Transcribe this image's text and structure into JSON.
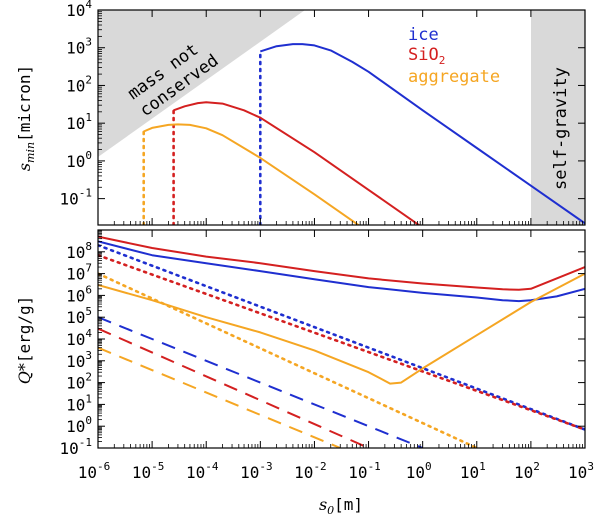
{
  "chart_data": [
    {
      "type": "line",
      "panel": "top",
      "ylabel_symbol": "s",
      "ylabel_sub": "min",
      "ylabel_unit": "[micron]",
      "xscale": "log",
      "yscale": "log",
      "xlim": [
        1e-06,
        1000
      ],
      "ylim": [
        0.02,
        10000
      ],
      "y_ticks": [
        {
          "base": "10",
          "exp": "-1",
          "value": 0.1
        },
        {
          "base": "10",
          "exp": "0",
          "value": 1
        },
        {
          "base": "10",
          "exp": "1",
          "value": 10
        },
        {
          "base": "10",
          "exp": "2",
          "value": 100
        },
        {
          "base": "10",
          "exp": "3",
          "value": 1000
        },
        {
          "base": "10",
          "exp": "4",
          "value": 10000
        }
      ],
      "legend": [
        {
          "name": "ice",
          "color": "#1f2fd0"
        },
        {
          "name": "SiO",
          "sub": "2",
          "color": "#d42020"
        },
        {
          "name": "aggregate",
          "color": "#f5a623"
        }
      ],
      "regions": [
        {
          "label_line1": "mass not",
          "label_line2": "conserved",
          "fill": "#d9d9d9"
        },
        {
          "label": "self-gravity",
          "fill": "#d9d9d9",
          "x_from": 100,
          "x_to": 1000
        }
      ],
      "series": [
        {
          "name": "ice",
          "color": "#1f2fd0",
          "style": "solid",
          "x": [
            0.001,
            0.002,
            0.004,
            0.006,
            0.01,
            0.02,
            0.05,
            0.1,
            1,
            10,
            100,
            1000
          ],
          "y": [
            800,
            1100,
            1250,
            1250,
            1150,
            850,
            420,
            230,
            22,
            2.2,
            0.22,
            0.022
          ]
        },
        {
          "name": "ice-cutoff",
          "color": "#1f2fd0",
          "style": "dotted",
          "x": [
            0.001,
            0.001
          ],
          "y": [
            0.02,
            800
          ]
        },
        {
          "name": "SiO2",
          "color": "#d42020",
          "style": "solid",
          "x": [
            2.5e-05,
            4e-05,
            7e-05,
            0.0001,
            0.0002,
            0.0005,
            0.001,
            0.01,
            0.1,
            1
          ],
          "y": [
            22,
            28,
            34,
            36,
            33,
            22,
            14,
            1.7,
            0.17,
            0.017
          ]
        },
        {
          "name": "SiO2-cutoff",
          "color": "#d42020",
          "style": "dotted",
          "x": [
            2.5e-05,
            2.5e-05
          ],
          "y": [
            0.02,
            22
          ]
        },
        {
          "name": "aggregate",
          "color": "#f5a623",
          "style": "solid",
          "x": [
            7e-06,
            1e-05,
            2e-05,
            3e-05,
            5e-05,
            0.0001,
            0.0002,
            0.001,
            0.01,
            0.1
          ],
          "y": [
            6,
            7.5,
            9,
            9.3,
            9,
            7.3,
            4.8,
            1.2,
            0.13,
            0.013
          ]
        },
        {
          "name": "aggregate-cutoff",
          "color": "#f5a623",
          "style": "dotted",
          "x": [
            7e-06,
            7e-06
          ],
          "y": [
            0.02,
            6
          ]
        }
      ]
    },
    {
      "type": "line",
      "panel": "bottom",
      "ylabel_symbol": "Q*",
      "ylabel_unit": "[erg/g]",
      "xlabel_symbol": "s",
      "xlabel_sub": "0",
      "xlabel_unit": "[m]",
      "xscale": "log",
      "yscale": "log",
      "xlim": [
        1e-06,
        1000
      ],
      "ylim": [
        0.1,
        1000000000
      ],
      "x_ticks": [
        {
          "base": "10",
          "exp": "-6",
          "value": 1e-06
        },
        {
          "base": "10",
          "exp": "-5",
          "value": 1e-05
        },
        {
          "base": "10",
          "exp": "-4",
          "value": 0.0001
        },
        {
          "base": "10",
          "exp": "-3",
          "value": 0.001
        },
        {
          "base": "10",
          "exp": "-2",
          "value": 0.01
        },
        {
          "base": "10",
          "exp": "-1",
          "value": 0.1
        },
        {
          "base": "10",
          "exp": "0",
          "value": 1
        },
        {
          "base": "10",
          "exp": "1",
          "value": 10
        },
        {
          "base": "10",
          "exp": "2",
          "value": 100
        },
        {
          "base": "10",
          "exp": "3",
          "value": 1000
        }
      ],
      "y_ticks": [
        {
          "base": "10",
          "exp": "-1",
          "value": 0.1
        },
        {
          "base": "10",
          "exp": "0",
          "value": 1
        },
        {
          "base": "10",
          "exp": "1",
          "value": 10
        },
        {
          "base": "10",
          "exp": "2",
          "value": 100
        },
        {
          "base": "10",
          "exp": "3",
          "value": 1000
        },
        {
          "base": "10",
          "exp": "4",
          "value": 10000
        },
        {
          "base": "10",
          "exp": "5",
          "value": 100000
        },
        {
          "base": "10",
          "exp": "6",
          "value": 1000000
        },
        {
          "base": "10",
          "exp": "7",
          "value": 10000000
        },
        {
          "base": "10",
          "exp": "8",
          "value": 100000000
        }
      ],
      "series": [
        {
          "name": "ice total",
          "color": "#1f2fd0",
          "style": "solid",
          "x": [
            1e-06,
            1e-05,
            0.0001,
            0.001,
            0.01,
            0.1,
            1,
            10,
            30,
            60,
            100,
            300,
            1000
          ],
          "y": [
            300000000,
            70000000,
            30000000,
            13000000,
            5500000,
            2400000,
            1300000,
            800000,
            600000,
            550000,
            600000,
            900000,
            2000000
          ]
        },
        {
          "name": "ice strength",
          "color": "#1f2fd0",
          "style": "dotted",
          "x": [
            1e-06,
            1000
          ],
          "y": [
            200000000,
            0.7
          ]
        },
        {
          "name": "ice gravity",
          "color": "#1f2fd0",
          "style": "dashed",
          "x": [
            1e-06,
            1
          ],
          "y": [
            100000,
            0.1
          ]
        },
        {
          "name": "SiO2 total",
          "color": "#d42020",
          "style": "solid",
          "x": [
            1e-06,
            1e-05,
            0.0001,
            0.001,
            0.01,
            0.1,
            1,
            10,
            30,
            60,
            100,
            300,
            1000
          ],
          "y": [
            500000000,
            150000000,
            60000000,
            30000000,
            13000000,
            6000000,
            3500000,
            2300000,
            1900000,
            1800000,
            2000000,
            6000000,
            20000000
          ]
        },
        {
          "name": "SiO2 strength",
          "color": "#d42020",
          "style": "dotted",
          "x": [
            1e-06,
            1000
          ],
          "y": [
            70000000,
            0.7
          ]
        },
        {
          "name": "SiO2 gravity",
          "color": "#d42020",
          "style": "dashed",
          "x": [
            1e-06,
            0.1
          ],
          "y": [
            30000,
            0.1
          ]
        },
        {
          "name": "aggregate total",
          "color": "#f5a623",
          "style": "solid",
          "x": [
            1e-06,
            1e-05,
            0.0001,
            0.001,
            0.01,
            0.1,
            0.25,
            0.4,
            1,
            10,
            100,
            1000
          ],
          "y": [
            3000000,
            600000,
            100000,
            20000,
            3000,
            300,
            90,
            100,
            450,
            15000,
            500000,
            10000000
          ]
        },
        {
          "name": "aggregate strength",
          "color": "#f5a623",
          "style": "dotted",
          "x": [
            1e-06,
            10
          ],
          "y": [
            10000000,
            0.1
          ]
        },
        {
          "name": "aggregate gravity",
          "color": "#f5a623",
          "style": "dashed",
          "x": [
            1e-06,
            0.03
          ],
          "y": [
            4000,
            0.1
          ]
        }
      ]
    }
  ]
}
